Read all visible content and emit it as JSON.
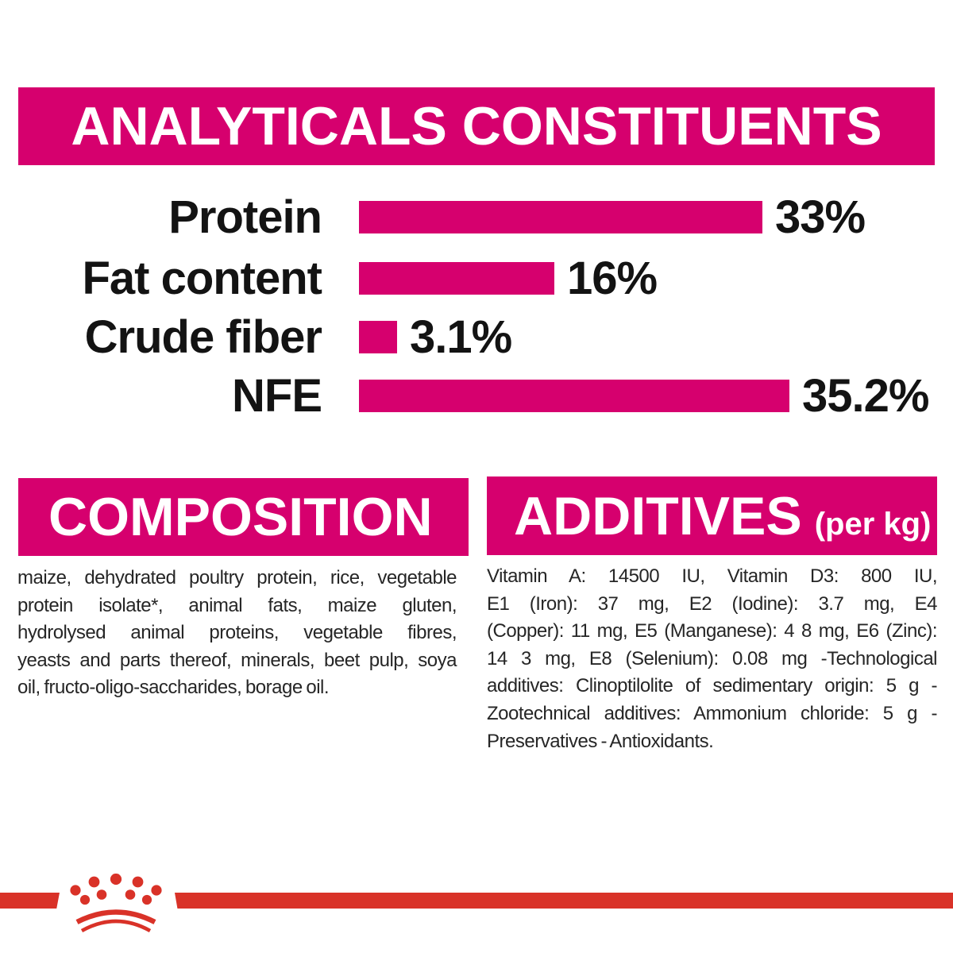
{
  "colors": {
    "accent_magenta": "#D6006E",
    "brand_red": "#D93228",
    "heading_text": "#FFFFFF",
    "chart_text": "#131313",
    "body_text": "#262626"
  },
  "header": {
    "title": "ANALYTICALS CONSTITUENTS"
  },
  "chart_data": {
    "type": "bar",
    "orientation": "horizontal",
    "title": "ANALYTICALS CONSTITUENTS",
    "categories": [
      "Protein",
      "Fat content",
      "Crude fiber",
      "NFE"
    ],
    "values": [
      33,
      16,
      3.1,
      35.2
    ],
    "unit": "%",
    "xlim": [
      0,
      36
    ],
    "grid": false,
    "legend": false,
    "bar_color": "#D6006E",
    "rows": [
      {
        "label": "Protein",
        "value": 33,
        "value_label": "33%"
      },
      {
        "label": "Fat content",
        "value": 16,
        "value_label": "16%"
      },
      {
        "label": "Crude fiber",
        "value": 3.1,
        "value_label": "3.1%"
      },
      {
        "label": "NFE",
        "value": 35.2,
        "value_label": "35.2%"
      }
    ]
  },
  "composition": {
    "heading": "COMPOSITION",
    "lines": [
      "maize, dehydrated poultry protein, rice, vegetable",
      "protein isolate*, animal fats, maize gluten,",
      "hydrolysed animal proteins, vegetable fibres,",
      "yeasts and parts thereof, minerals, beet pulp, soya",
      "oil, fructo-oligo-saccharides, borage oil."
    ]
  },
  "additives": {
    "heading": "ADDITIVES",
    "heading_suffix": "(per kg)",
    "lines": [
      "Vitamin A: 14500 IU, Vitamin D3: 800 IU,",
      "E1 (Iron): 37 mg, E2 (Iodine): 3.7 mg, E4",
      "(Copper): 11 mg, E5 (Manganese): 4 8 mg, E6 (Zinc):",
      "14 3 mg, E8 (Selenium): 0.08 mg -Technological",
      "additives: Clinoptilolite of sedimentary origin: 5 g -",
      "Zootechnical additives: Ammonium chloride: 5 g -",
      "Preservatives - Antioxidants."
    ]
  },
  "footer": {
    "brand_icon": "royal-canin-crown-icon"
  }
}
